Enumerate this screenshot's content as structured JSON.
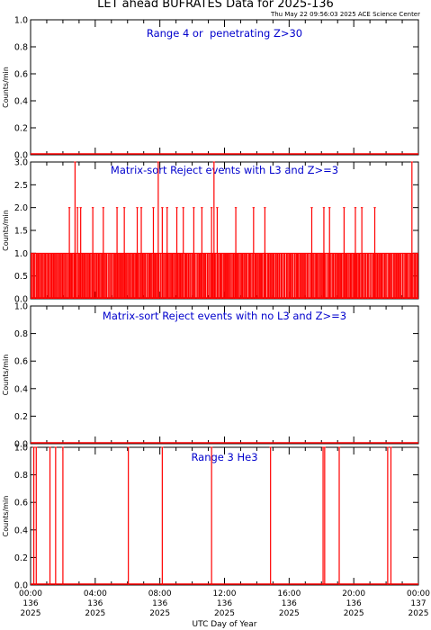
{
  "header": {
    "title": "LET ahead BUFRATES Data for 2025-136",
    "timestamp": "Thu May 22 09:56:03 2025 ACE Science Center"
  },
  "colors": {
    "trace": "#ff0000",
    "panel_title": "#0000cc",
    "axis": "#000000"
  },
  "chart_data": [
    {
      "type": "line",
      "title": "Range 4 or  penetrating Z>30",
      "ylabel": "Counts/min",
      "ylim": [
        0,
        1.0
      ],
      "yticks": [
        "0.0",
        "0.2",
        "0.4",
        "0.6",
        "0.8",
        "1.0"
      ],
      "ytick_values": [
        0,
        0.2,
        0.4,
        0.6,
        0.8,
        1.0
      ],
      "xlim": [
        0,
        24
      ],
      "series": [
        {
          "baseline": 0,
          "spikes": []
        }
      ]
    },
    {
      "type": "line",
      "title": "Matrix-sort Reject events with L3 and Z>=3",
      "ylabel": "Counts/min",
      "ylim": [
        0,
        3.0
      ],
      "yticks": [
        "0.0",
        "0.5",
        "1.0",
        "1.5",
        "2.0",
        "2.5",
        "3.0"
      ],
      "ytick_values": [
        0,
        0.5,
        1.0,
        1.5,
        2.0,
        2.5,
        3.0
      ],
      "xlim": [
        0,
        24
      ],
      "series": [
        {
          "baseline": 0,
          "dense_level": 1,
          "dense_count": 520,
          "spikes": [
            {
              "x": 2.4,
              "y": 2
            },
            {
              "x": 2.75,
              "y": 3
            },
            {
              "x": 2.9,
              "y": 2
            },
            {
              "x": 3.1,
              "y": 2
            },
            {
              "x": 3.85,
              "y": 2
            },
            {
              "x": 4.5,
              "y": 2
            },
            {
              "x": 5.35,
              "y": 2
            },
            {
              "x": 5.8,
              "y": 2
            },
            {
              "x": 6.6,
              "y": 2
            },
            {
              "x": 6.85,
              "y": 2
            },
            {
              "x": 7.6,
              "y": 2
            },
            {
              "x": 7.9,
              "y": 3
            },
            {
              "x": 8.15,
              "y": 2
            },
            {
              "x": 8.45,
              "y": 2
            },
            {
              "x": 9.05,
              "y": 2
            },
            {
              "x": 9.45,
              "y": 2
            },
            {
              "x": 10.1,
              "y": 2
            },
            {
              "x": 10.6,
              "y": 2
            },
            {
              "x": 11.2,
              "y": 2
            },
            {
              "x": 11.35,
              "y": 3
            },
            {
              "x": 11.55,
              "y": 2
            },
            {
              "x": 12.7,
              "y": 2
            },
            {
              "x": 13.8,
              "y": 2
            },
            {
              "x": 14.5,
              "y": 2
            },
            {
              "x": 17.4,
              "y": 2
            },
            {
              "x": 18.15,
              "y": 2
            },
            {
              "x": 18.5,
              "y": 2
            },
            {
              "x": 19.4,
              "y": 2
            },
            {
              "x": 20.1,
              "y": 2
            },
            {
              "x": 20.5,
              "y": 2
            },
            {
              "x": 21.3,
              "y": 2
            },
            {
              "x": 23.6,
              "y": 3
            }
          ]
        }
      ]
    },
    {
      "type": "line",
      "title": "Matrix-sort Reject events with no L3 and Z>=3",
      "ylabel": "Counts/min",
      "ylim": [
        0,
        1.0
      ],
      "yticks": [
        "0.0",
        "0.2",
        "0.4",
        "0.6",
        "0.8",
        "1.0"
      ],
      "ytick_values": [
        0,
        0.2,
        0.4,
        0.6,
        0.8,
        1.0
      ],
      "xlim": [
        0,
        24
      ],
      "series": [
        {
          "baseline": 0,
          "spikes": []
        }
      ]
    },
    {
      "type": "line",
      "title": "Range 3 He3",
      "ylabel": "Counts/min",
      "ylim": [
        0,
        1.0
      ],
      "yticks": [
        "0.0",
        "0.2",
        "0.4",
        "0.6",
        "0.8",
        "1.0"
      ],
      "ytick_values": [
        0,
        0.2,
        0.4,
        0.6,
        0.8,
        1.0
      ],
      "xlim": [
        0,
        24
      ],
      "series": [
        {
          "baseline": 0,
          "spikes": [
            {
              "x": 0.2,
              "y": 1
            },
            {
              "x": 0.35,
              "y": 1
            },
            {
              "x": 1.2,
              "y": 1
            },
            {
              "x": 1.55,
              "y": 1
            },
            {
              "x": 2.0,
              "y": 1
            },
            {
              "x": 6.05,
              "y": 1
            },
            {
              "x": 8.15,
              "y": 1
            },
            {
              "x": 11.2,
              "y": 1
            },
            {
              "x": 14.85,
              "y": 1
            },
            {
              "x": 18.1,
              "y": 1
            },
            {
              "x": 18.2,
              "y": 1
            },
            {
              "x": 19.1,
              "y": 1
            },
            {
              "x": 22.1,
              "y": 1
            },
            {
              "x": 22.3,
              "y": 1
            }
          ]
        }
      ]
    }
  ],
  "x_axis": {
    "label": "UTC Day of Year",
    "ticks": [
      {
        "x": 0,
        "time": "00:00",
        "doy": "136",
        "year": "2025"
      },
      {
        "x": 4,
        "time": "04:00",
        "doy": "136",
        "year": "2025"
      },
      {
        "x": 8,
        "time": "08:00",
        "doy": "136",
        "year": "2025"
      },
      {
        "x": 12,
        "time": "12:00",
        "doy": "136",
        "year": "2025"
      },
      {
        "x": 16,
        "time": "16:00",
        "doy": "136",
        "year": "2025"
      },
      {
        "x": 20,
        "time": "20:00",
        "doy": "136",
        "year": "2025"
      },
      {
        "x": 24,
        "time": "00:00",
        "doy": "137",
        "year": "2025"
      }
    ]
  }
}
